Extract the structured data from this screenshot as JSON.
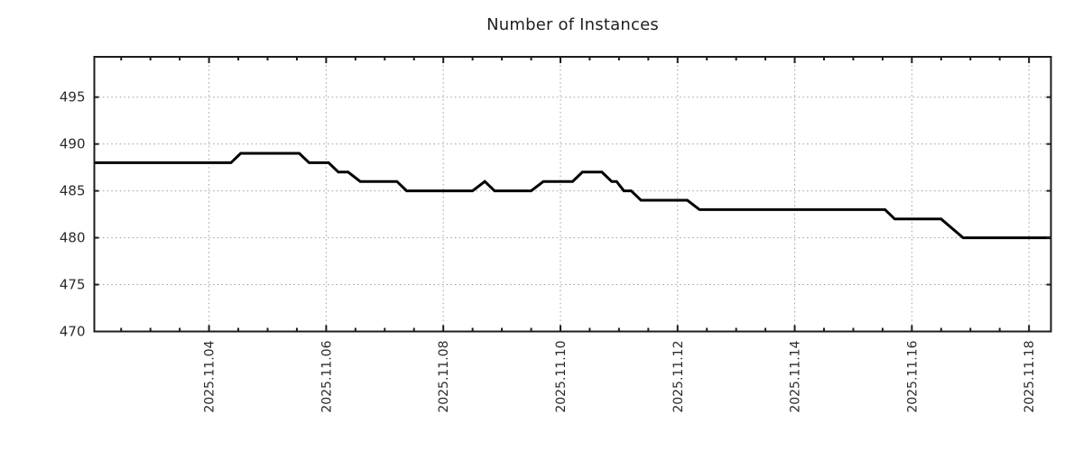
{
  "chart_data": {
    "type": "line",
    "title": "Number of Instances",
    "grid": "dotted",
    "legend": "none",
    "x_axis": {
      "range": [
        "2025-11-02 01:00",
        "2025-11-18 09:00"
      ],
      "major_ticks": [
        {
          "t": "2025-11-04 00:00",
          "label": "2025.11.04"
        },
        {
          "t": "2025-11-06 00:00",
          "label": "2025.11.06"
        },
        {
          "t": "2025-11-08 00:00",
          "label": "2025.11.08"
        },
        {
          "t": "2025-11-10 00:00",
          "label": "2025.11.10"
        },
        {
          "t": "2025-11-12 00:00",
          "label": "2025.11.12"
        },
        {
          "t": "2025-11-14 00:00",
          "label": "2025.11.14"
        },
        {
          "t": "2025-11-16 00:00",
          "label": "2025.11.16"
        },
        {
          "t": "2025-11-18 00:00",
          "label": "2025.11.18"
        }
      ],
      "minor_tick_interval_hours": 12,
      "label_rotation_deg": 90
    },
    "y_axis": {
      "range": [
        470,
        499.3
      ],
      "major_ticks": [
        470,
        475,
        480,
        485,
        490,
        495
      ]
    },
    "series": [
      {
        "name": "instances",
        "color": "#000000",
        "line_width": 3,
        "points": [
          [
            "2025-11-02 01:00",
            488
          ],
          [
            "2025-11-04 09:00",
            488
          ],
          [
            "2025-11-04 13:00",
            489
          ],
          [
            "2025-11-05 13:00",
            489
          ],
          [
            "2025-11-05 17:00",
            488
          ],
          [
            "2025-11-06 01:00",
            488
          ],
          [
            "2025-11-06 05:00",
            487
          ],
          [
            "2025-11-06 09:00",
            487
          ],
          [
            "2025-11-06 14:00",
            486
          ],
          [
            "2025-11-07 05:00",
            486
          ],
          [
            "2025-11-07 09:00",
            485
          ],
          [
            "2025-11-08 12:00",
            485
          ],
          [
            "2025-11-08 17:00",
            486
          ],
          [
            "2025-11-08 21:00",
            485
          ],
          [
            "2025-11-09 12:00",
            485
          ],
          [
            "2025-11-09 17:00",
            486
          ],
          [
            "2025-11-10 05:00",
            486
          ],
          [
            "2025-11-10 09:00",
            487
          ],
          [
            "2025-11-10 17:00",
            487
          ],
          [
            "2025-11-10 21:00",
            486
          ],
          [
            "2025-11-10 23:00",
            486
          ],
          [
            "2025-11-11 02:00",
            485
          ],
          [
            "2025-11-11 05:00",
            485
          ],
          [
            "2025-11-11 09:00",
            484
          ],
          [
            "2025-11-12 04:00",
            484
          ],
          [
            "2025-11-12 09:00",
            483
          ],
          [
            "2025-11-15 13:00",
            483
          ],
          [
            "2025-11-15 17:00",
            482
          ],
          [
            "2025-11-16 12:00",
            482
          ],
          [
            "2025-11-16 21:00",
            480
          ],
          [
            "2025-11-18 09:00",
            480
          ]
        ]
      }
    ],
    "colors": {
      "line": "#000000",
      "grid": "#9e9e9e",
      "frame": "#1c1c1c",
      "tick_text": "#2b2b2b",
      "title_text": "#1f1f1f",
      "background": "#ffffff"
    }
  }
}
